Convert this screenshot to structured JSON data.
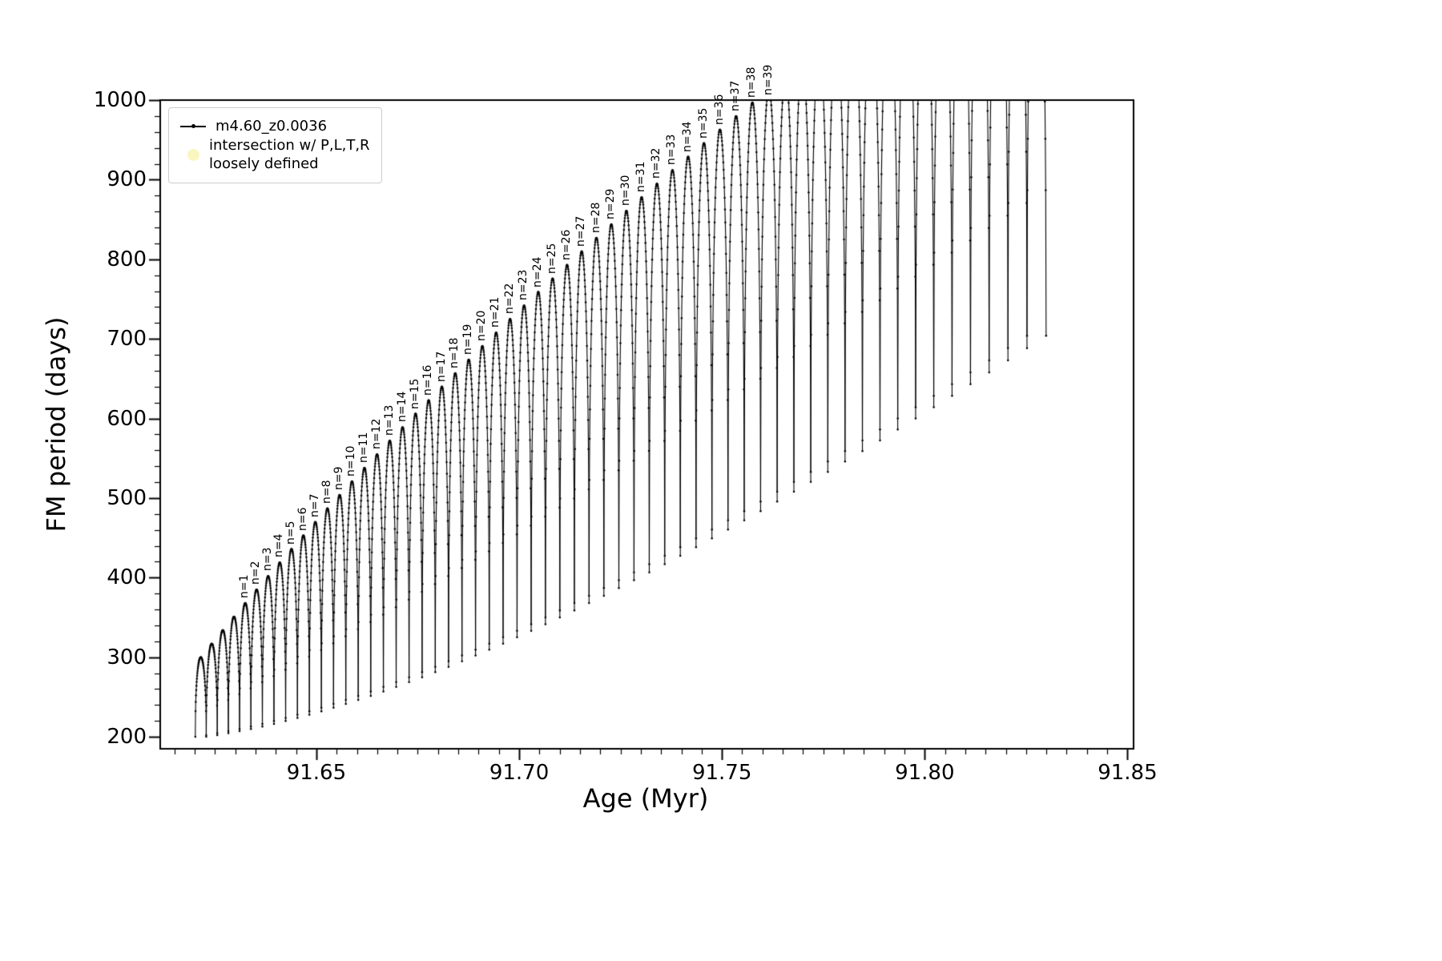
{
  "figure": {
    "background": "#ffffff",
    "frame_color": "#000000",
    "legend": {
      "series1_label": "m4.60_z0.0036",
      "series1_color": "#000000",
      "series2_label_line1": "intersection w/ P,L,T,R",
      "series2_label_line2": "loosely defined",
      "series2_color": "#fbf6c0"
    }
  },
  "chart_data": {
    "type": "line",
    "title": "",
    "xlabel": "Age (Myr)",
    "ylabel": "FM period (days)",
    "xlim": [
      91.6115,
      91.8515
    ],
    "ylim": [
      185,
      1000
    ],
    "grid": false,
    "legend_position": "upper-left",
    "series_name": "m4.60_z0.0036",
    "line_color": "#000000",
    "marker": "point",
    "x_major_ticks": [
      91.65,
      91.7,
      91.75,
      91.8,
      91.85
    ],
    "x_tick_labels": [
      "91.65",
      "91.70",
      "91.75",
      "91.80",
      "91.85"
    ],
    "x_minor_step": 0.005,
    "y_major_ticks": [
      200,
      300,
      400,
      500,
      600,
      700,
      800,
      900,
      1000
    ],
    "y_tick_labels": [
      "200",
      "300",
      "400",
      "500",
      "600",
      "700",
      "800",
      "900",
      "1000"
    ],
    "y_minor_step": 20,
    "clip_max_period": 1000,
    "description": "Sequence of resonance sweep arcs labelled n=1 to n=39; each arc rises from its base period to a peak period and falls back; peaks above 1000 days are clipped by the axes top.",
    "arcs_format": [
      "age_myr_at_peak",
      "peak_period_days",
      "base_period_days",
      "label"
    ],
    "arcs": [
      [
        91.6215,
        300,
        200.0,
        ""
      ],
      [
        91.6242,
        317,
        202.1,
        ""
      ],
      [
        91.62693,
        334,
        204.5,
        ""
      ],
      [
        91.62968,
        351,
        207.1,
        ""
      ],
      [
        91.63246,
        368,
        209.9,
        "n=1"
      ],
      [
        91.63527,
        385,
        213.0,
        "n=2"
      ],
      [
        91.63811,
        402,
        216.3,
        "n=3"
      ],
      [
        91.64098,
        419,
        219.9,
        "n=4"
      ],
      [
        91.64387,
        436,
        223.7,
        "n=5"
      ],
      [
        91.6468,
        453,
        227.7,
        "n=6"
      ],
      [
        91.64975,
        470,
        232.0,
        "n=7"
      ],
      [
        91.65273,
        487,
        236.5,
        "n=8"
      ],
      [
        91.65574,
        504,
        241.3,
        "n=9"
      ],
      [
        91.65879,
        521,
        246.3,
        "n=10"
      ],
      [
        91.66186,
        538,
        251.5,
        "n=11"
      ],
      [
        91.66496,
        555,
        257.0,
        "n=12"
      ],
      [
        91.6681,
        572,
        262.7,
        "n=13"
      ],
      [
        91.67126,
        589,
        268.7,
        "n=14"
      ],
      [
        91.67446,
        606,
        274.9,
        "n=15"
      ],
      [
        91.67769,
        623,
        281.3,
        "n=16"
      ],
      [
        91.68095,
        640,
        288.0,
        "n=17"
      ],
      [
        91.68425,
        657,
        294.9,
        "n=18"
      ],
      [
        91.68757,
        674,
        302.1,
        "n=19"
      ],
      [
        91.69093,
        691,
        309.5,
        "n=20"
      ],
      [
        91.69433,
        708,
        317.1,
        "n=21"
      ],
      [
        91.69776,
        725,
        325.0,
        "n=22"
      ],
      [
        91.70122,
        742,
        333.1,
        "n=23"
      ],
      [
        91.70472,
        759,
        341.5,
        "n=24"
      ],
      [
        91.70825,
        776,
        350.1,
        "n=25"
      ],
      [
        91.71182,
        793,
        358.9,
        "n=26"
      ],
      [
        91.71542,
        810,
        368.0,
        "n=27"
      ],
      [
        91.71906,
        827,
        377.3,
        "n=28"
      ],
      [
        91.72273,
        844,
        386.9,
        "n=29"
      ],
      [
        91.72645,
        861,
        396.7,
        "n=30"
      ],
      [
        91.7302,
        878,
        406.7,
        "n=31"
      ],
      [
        91.73398,
        895,
        417.0,
        "n=32"
      ],
      [
        91.73781,
        912,
        427.5,
        "n=33"
      ],
      [
        91.74167,
        929,
        438.3,
        "n=34"
      ],
      [
        91.74557,
        946,
        449.3,
        "n=35"
      ],
      [
        91.74951,
        963,
        460.5,
        "n=36"
      ],
      [
        91.75349,
        980,
        472.0,
        "n=37"
      ],
      [
        91.75751,
        997,
        483.7,
        "n=38"
      ],
      [
        91.76157,
        1014,
        495.7,
        "n=39"
      ],
      [
        91.76568,
        1031,
        507.9,
        ""
      ],
      [
        91.76982,
        1048,
        520.3,
        ""
      ],
      [
        91.774,
        1065,
        533.0,
        ""
      ],
      [
        91.77823,
        1082,
        545.9,
        ""
      ],
      [
        91.78249,
        1099,
        559.1,
        ""
      ],
      [
        91.7868,
        1116,
        572.5,
        ""
      ],
      [
        91.79116,
        1133,
        586.1,
        ""
      ],
      [
        91.79555,
        1150,
        600.0,
        ""
      ],
      [
        91.79999,
        1167,
        614.1,
        ""
      ],
      [
        91.80448,
        1184,
        628.5,
        ""
      ],
      [
        91.80901,
        1201,
        643.1,
        ""
      ],
      [
        91.81358,
        1218,
        657.9,
        ""
      ],
      [
        91.8182,
        1235,
        673.0,
        ""
      ],
      [
        91.82287,
        1252,
        688.3,
        ""
      ],
      [
        91.82758,
        1269,
        703.9,
        ""
      ]
    ]
  }
}
